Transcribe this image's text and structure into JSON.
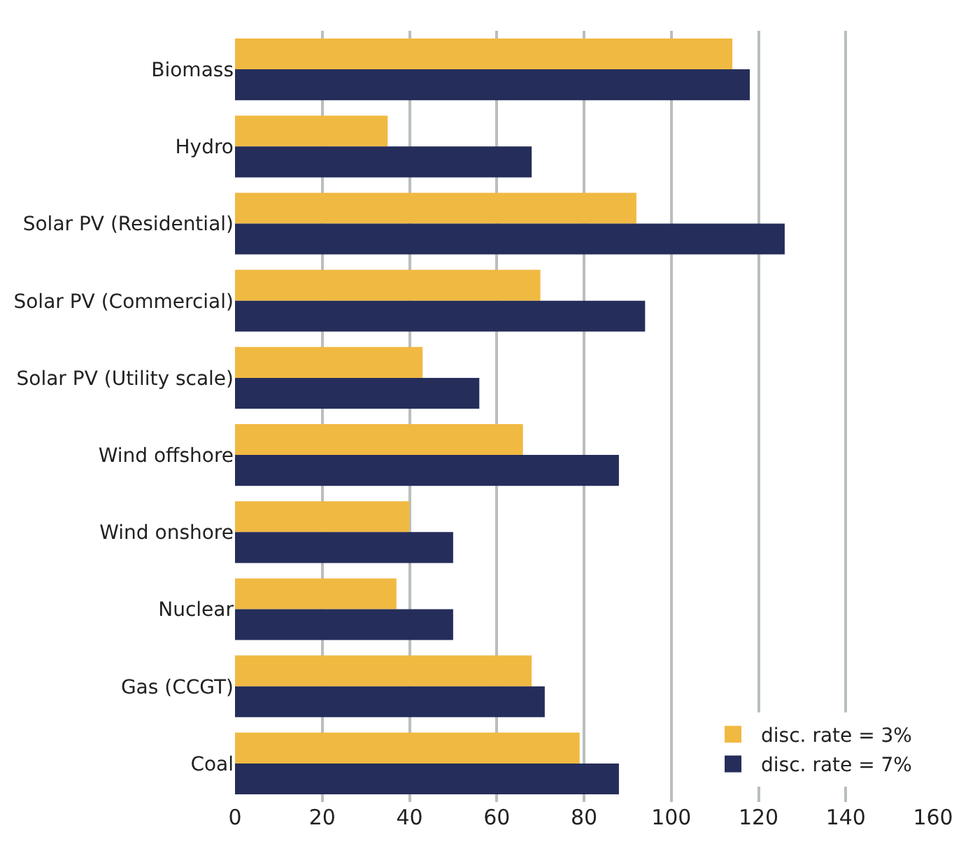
{
  "chart_data": {
    "type": "bar",
    "orientation": "horizontal",
    "categories": [
      "Biomass",
      "Hydro",
      "Solar PV (Residential)",
      "Solar PV (Commercial)",
      "Solar PV (Utility scale)",
      "Wind offshore",
      "Wind onshore",
      "Nuclear",
      "Gas (CCGT)",
      "Coal"
    ],
    "series": [
      {
        "name": "disc. rate = 3%",
        "color": "#f0b942",
        "values": [
          114,
          35,
          92,
          70,
          43,
          66,
          40,
          37,
          68,
          79
        ]
      },
      {
        "name": "disc. rate = 7%",
        "color": "#252d5a",
        "values": [
          118,
          68,
          126,
          94,
          56,
          88,
          50,
          50,
          71,
          88
        ]
      }
    ],
    "xlim": [
      0,
      160
    ],
    "xticks": [
      0,
      20,
      40,
      60,
      80,
      100,
      120,
      140,
      160
    ],
    "grid": "x",
    "legend": "bottom right"
  }
}
